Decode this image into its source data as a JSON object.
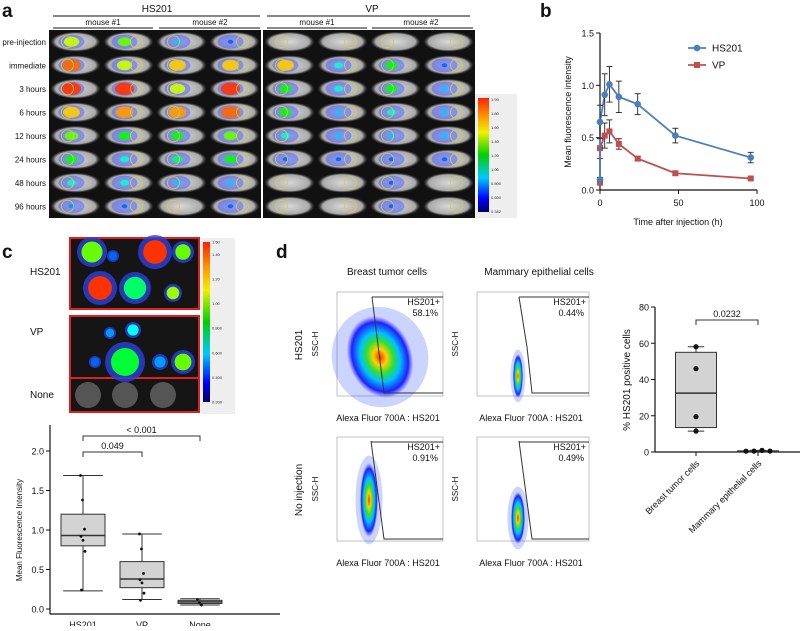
{
  "panel_labels": {
    "a": "a",
    "b": "b",
    "c": "c",
    "d": "d"
  },
  "panel_a": {
    "groups": [
      "HS201",
      "VP"
    ],
    "mice": [
      "mouse #1",
      "mouse #2"
    ],
    "rows": [
      "pre-injection",
      "immediate",
      "3 hours",
      "6 hours",
      "12 hours",
      "24 hours",
      "48 hours",
      "96 hours"
    ],
    "colorbar_ticks": [
      "1.99",
      "1.80",
      "1.60",
      "1.40",
      "1.20",
      "1.00",
      "0.800",
      "0.600",
      "0.382"
    ]
  },
  "panel_c_images": {
    "rows": [
      "HS201",
      "VP",
      "None"
    ],
    "colorbar_ticks": [
      "1.50",
      "1.40",
      "1.20",
      "1.00",
      "0.800",
      "0.600",
      "0.400",
      "0.200"
    ],
    "frame_color": "#e02020"
  },
  "panel_d_flow": {
    "columns": [
      "Breast tumor cells",
      "Mammary epithelial cells"
    ],
    "rows": [
      "HS201",
      "No injection"
    ],
    "xlabel": "Alexa Fluor 700A : HS201",
    "ylabel": "SSC-H",
    "gate_label": "HS201+",
    "percentages": [
      [
        "58.1%",
        "0.44%"
      ],
      [
        "0.91%",
        "0.49%"
      ]
    ]
  },
  "chart_data": [
    {
      "type": "line",
      "xlabel": "Time after injection (h)",
      "ylabel": "Mean fluorescence intensity",
      "xlim": [
        0,
        100
      ],
      "ylim": [
        0,
        1.5
      ],
      "xticks": [
        "0",
        "50",
        "100"
      ],
      "yticks": [
        "0.0",
        "0.5",
        "1.0",
        "1.5"
      ],
      "legend": "top-right",
      "x": [
        0,
        0,
        3,
        6,
        12,
        24,
        48,
        96
      ],
      "series": [
        {
          "name": "HS201",
          "color": "#4a7fbf",
          "marker": "circle",
          "values": [
            0.1,
            0.65,
            0.91,
            1.01,
            0.89,
            0.82,
            0.52,
            0.31
          ],
          "errors": [
            0.02,
            0.16,
            0.2,
            0.17,
            0.15,
            0.1,
            0.07,
            0.05
          ]
        },
        {
          "name": "VP",
          "color": "#c0504d",
          "marker": "square",
          "values": [
            0.07,
            0.4,
            0.52,
            0.56,
            0.44,
            0.3,
            0.16,
            0.11
          ],
          "errors": [
            0.01,
            0.1,
            0.12,
            0.11,
            0.05,
            0.02,
            0.02,
            0.01
          ]
        }
      ]
    },
    {
      "type": "box",
      "ylabel": "Mean Fluorescence Intensity",
      "ylim": [
        0,
        2.2
      ],
      "yticks": [
        "0.0",
        "0.5",
        "1.0",
        "1.5",
        "2.0"
      ],
      "categories": [
        "HS201",
        "VP",
        "None"
      ],
      "boxes": [
        {
          "whisker_low": 0.23,
          "q1": 0.8,
          "median": 0.93,
          "q3": 1.2,
          "whisker_high": 1.69,
          "points": [
            1.69,
            1.38,
            1.01,
            0.92,
            0.87,
            0.73,
            0.24
          ]
        },
        {
          "whisker_low": 0.12,
          "q1": 0.27,
          "median": 0.38,
          "q3": 0.6,
          "whisker_high": 0.95,
          "points": [
            0.95,
            0.76,
            0.45,
            0.37,
            0.33,
            0.2,
            0.11
          ]
        },
        {
          "whisker_low": 0.05,
          "q1": 0.07,
          "median": 0.09,
          "q3": 0.11,
          "whisker_high": 0.13,
          "points": [
            0.12,
            0.08,
            0.05
          ]
        }
      ],
      "box_color": "#d3d3d3",
      "comparisons": [
        {
          "from": "HS201",
          "to": "VP",
          "p": "0.049"
        },
        {
          "from": "HS201",
          "to": "None",
          "p": "< 0.001"
        }
      ]
    },
    {
      "type": "box",
      "ylabel": "% HS201 positive cells",
      "ylim": [
        0,
        80
      ],
      "yticks": [
        "0",
        "20",
        "40",
        "60",
        "80"
      ],
      "categories": [
        "Breast tumor cells",
        "Mammary epithelial cells"
      ],
      "boxes": [
        {
          "whisker_low": 11.5,
          "q1": 13.5,
          "median": 32.5,
          "q3": 55.0,
          "whisker_high": 58.1,
          "points": [
            58.1,
            46.0,
            19.5,
            11.5
          ]
        },
        {
          "whisker_low": 0.44,
          "q1": 0.46,
          "median": 0.5,
          "q3": 0.6,
          "whisker_high": 0.91,
          "points": [
            0.44,
            0.49,
            0.91,
            0.5
          ]
        }
      ],
      "box_color": "#d3d3d3",
      "comparisons": [
        {
          "from": "Breast tumor cells",
          "to": "Mammary epithelial cells",
          "p": "0.0232"
        }
      ]
    }
  ]
}
